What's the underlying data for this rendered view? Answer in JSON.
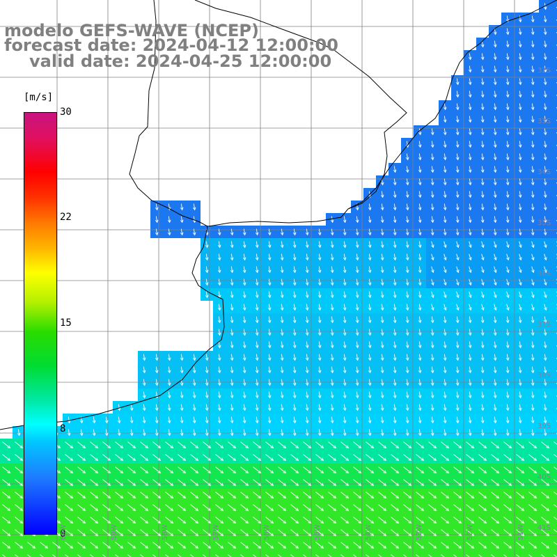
{
  "title": {
    "model": "modelo GEFS-WAVE (NCEP)",
    "forecast_date": "forecast date: 2024-04-12 12:00:00",
    "valid_date": "valid date: 2024-04-25 12:00:00"
  },
  "colorbar": {
    "unit": "[m/s]",
    "ticks": [
      "30",
      "22",
      "15",
      "8",
      "0"
    ],
    "tick_values": [
      30,
      22,
      15,
      8,
      0
    ],
    "range": [
      0,
      30
    ],
    "colors": [
      "#0000ff",
      "#1e78ff",
      "#00c8ff",
      "#00ffff",
      "#00dc32",
      "#b4f000",
      "#ffff00",
      "#ff7800",
      "#ff0000",
      "#c8147f"
    ]
  },
  "grid": {
    "lat_labels": [
      "32S",
      "33S",
      "34S",
      "35S",
      "36S",
      "37S",
      "38S",
      "39S",
      "40S",
      "41S"
    ],
    "lon_labels": [
      "60W",
      "59W",
      "58W",
      "57W",
      "56W",
      "55W",
      "54W",
      "53W",
      "52W",
      "51W"
    ]
  },
  "colors": {
    "land": "#ffffff",
    "coast": "#000000",
    "grid": "#808080",
    "arrows": "#ffffff"
  }
}
